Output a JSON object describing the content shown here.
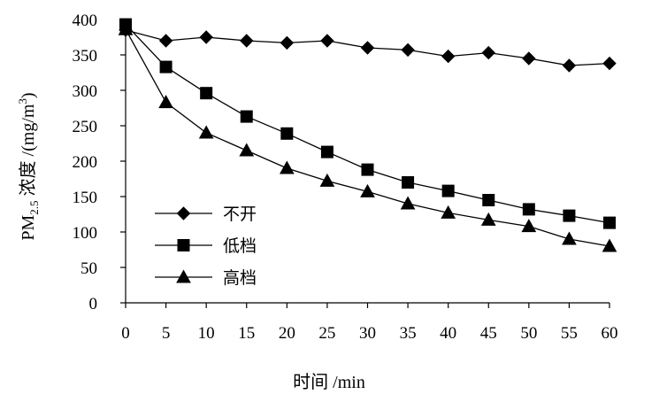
{
  "chart_data": {
    "type": "line",
    "x": [
      0,
      5,
      10,
      15,
      20,
      25,
      30,
      35,
      40,
      45,
      50,
      55,
      60
    ],
    "xlim": [
      0,
      60
    ],
    "xticks": [
      "0",
      "5",
      "10",
      "15",
      "20",
      "25",
      "30",
      "35",
      "40",
      "45",
      "50",
      "55",
      "60"
    ],
    "ylim": [
      0,
      400
    ],
    "yticks": [
      "0",
      "50",
      "100",
      "150",
      "200",
      "250",
      "300",
      "350",
      "400"
    ],
    "xlabel": "时间 /min",
    "ylabel": {
      "prefix": "PM",
      "subscript": "2.5",
      "middle": " 浓度 /(mg/m",
      "superscript": "3",
      "suffix": ")"
    },
    "grid": false,
    "legend_position": "bottom-left",
    "series": [
      {
        "name": "不开",
        "marker": "diamond",
        "values": [
          385,
          370,
          375,
          370,
          367,
          370,
          360,
          357,
          348,
          353,
          345,
          335,
          338
        ]
      },
      {
        "name": "低档",
        "marker": "square",
        "values": [
          393,
          333,
          296,
          263,
          239,
          213,
          188,
          170,
          158,
          145,
          132,
          123,
          113
        ]
      },
      {
        "name": "高档",
        "marker": "triangle",
        "values": [
          386,
          283,
          240,
          215,
          190,
          172,
          157,
          140,
          127,
          117,
          108,
          90,
          80
        ]
      }
    ]
  }
}
